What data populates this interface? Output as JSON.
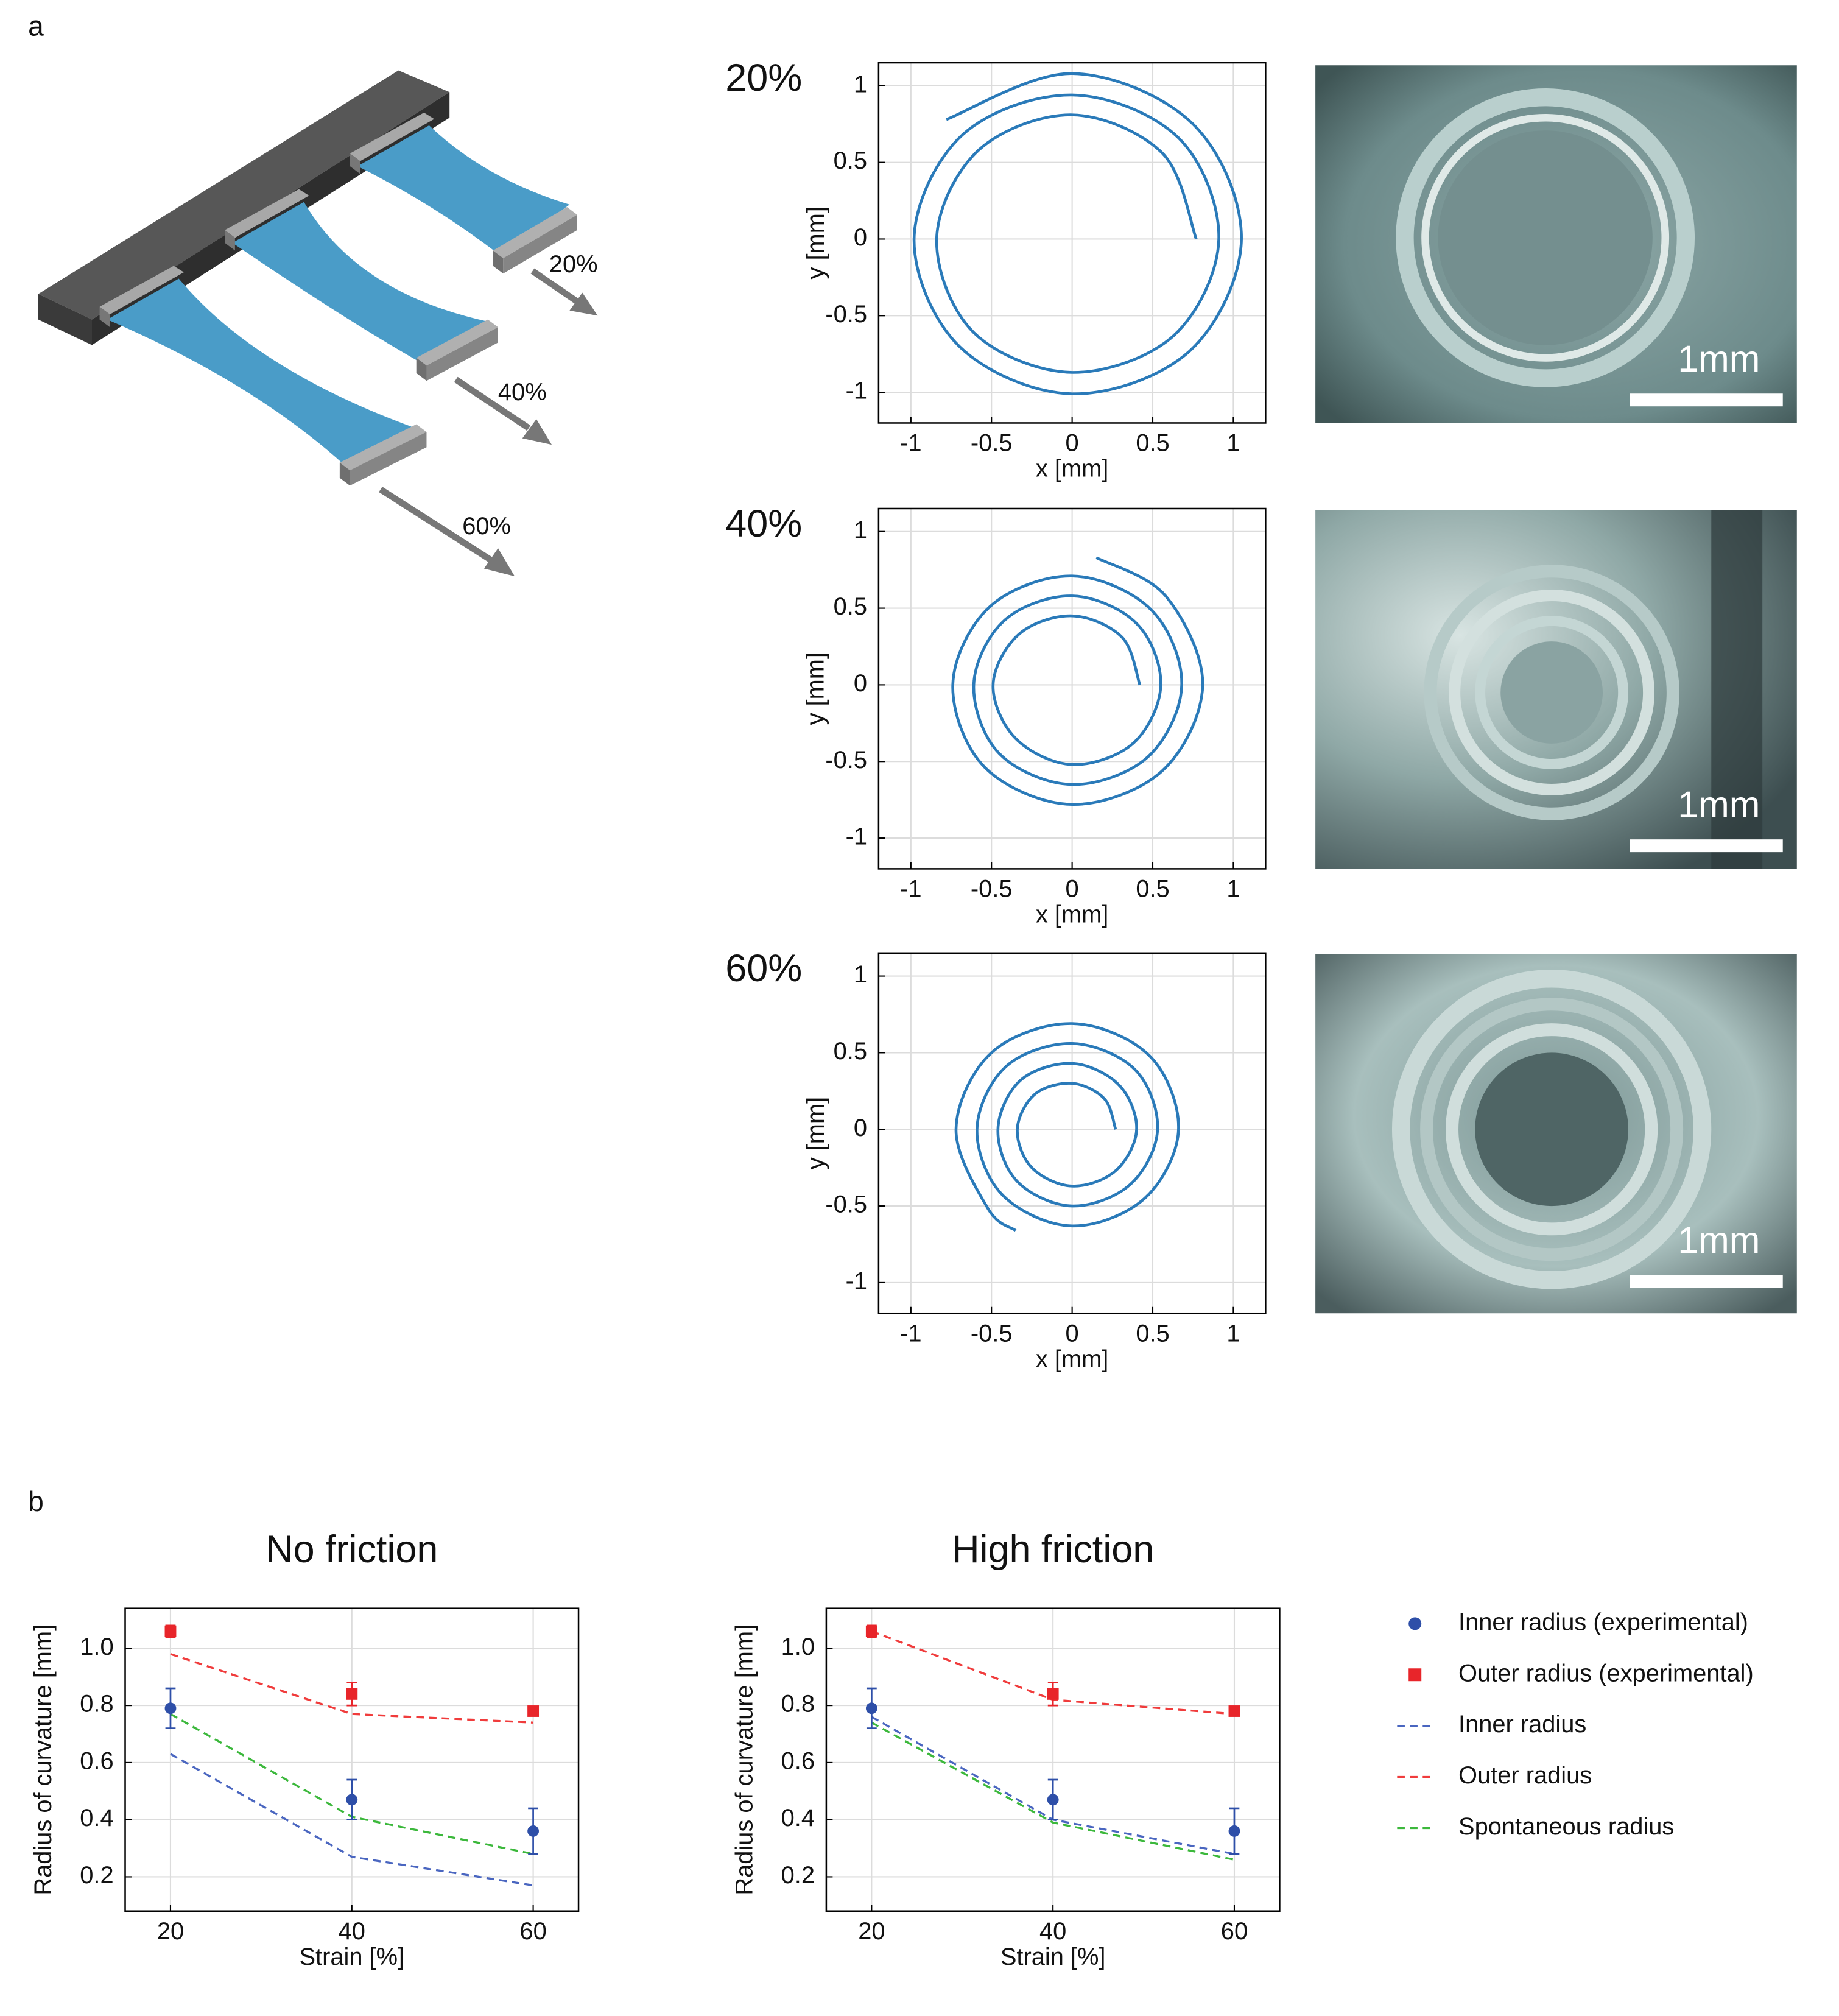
{
  "figure": {
    "panel_labels": [
      "a",
      "b"
    ],
    "stretch_labels": [
      "20%",
      "40%",
      "60%"
    ],
    "scale_bars": [
      "1mm",
      "1mm",
      "1mm"
    ]
  },
  "chart_data": [
    {
      "type": "line",
      "title": "20%",
      "xlabel": "x [mm]",
      "ylabel": "y [mm]",
      "color": "#2a7ab9",
      "grid": true,
      "xlim": [
        -1.2,
        1.2
      ],
      "ylim": [
        -1.2,
        1.15
      ],
      "xticks": [
        -1,
        -0.5,
        0,
        0.5,
        1
      ],
      "yticks": [
        -1,
        -0.5,
        0,
        0.5,
        1
      ],
      "x": [
        0.77,
        0.56,
        0,
        -0.58,
        -0.84,
        -0.61,
        0,
        0.63,
        0.91,
        0.66,
        0,
        -0.68,
        -0.98,
        -0.7,
        0,
        0.73,
        1.05,
        0.75,
        0,
        -0.78
      ],
      "values": [
        0,
        0.56,
        0.81,
        0.58,
        0,
        -0.61,
        -0.87,
        -0.63,
        0,
        0.66,
        0.94,
        0.68,
        0,
        -0.7,
        -1.01,
        -0.73,
        0,
        0.75,
        1.08,
        0.78
      ]
    },
    {
      "type": "line",
      "title": "40%",
      "xlabel": "x [mm]",
      "ylabel": "y [mm]",
      "color": "#2a7ab9",
      "grid": true,
      "xlim": [
        -1.2,
        1.2
      ],
      "ylim": [
        -1.2,
        1.15
      ],
      "xticks": [
        -1,
        -0.5,
        0,
        0.5,
        1
      ],
      "yticks": [
        -1,
        -0.5,
        0,
        0.5,
        1
      ],
      "x": [
        0.42,
        0.31,
        0,
        -0.33,
        -0.49,
        -0.35,
        0,
        0.38,
        0.55,
        0.4,
        0,
        -0.42,
        -0.61,
        -0.45,
        0,
        0.47,
        0.68,
        0.49,
        0,
        -0.51,
        -0.74,
        -0.54,
        0,
        0.56,
        0.81,
        0.58,
        0.15
      ],
      "values": [
        0,
        0.31,
        0.45,
        0.33,
        0,
        -0.35,
        -0.52,
        -0.38,
        0,
        0.4,
        0.58,
        0.42,
        0,
        -0.45,
        -0.65,
        -0.47,
        0,
        0.49,
        0.71,
        0.51,
        0,
        -0.54,
        -0.78,
        -0.56,
        0,
        0.58,
        0.83
      ]
    },
    {
      "type": "line",
      "title": "60%",
      "xlabel": "x [mm]",
      "ylabel": "y [mm]",
      "color": "#2a7ab9",
      "grid": true,
      "xlim": [
        -1.2,
        1.2
      ],
      "ylim": [
        -1.2,
        1.15
      ],
      "xticks": [
        -1,
        -0.5,
        0,
        0.5,
        1
      ],
      "yticks": [
        -1,
        -0.5,
        0,
        0.5,
        1
      ],
      "x": [
        0.27,
        0.2,
        0,
        -0.23,
        -0.34,
        -0.25,
        0,
        0.27,
        0.4,
        0.29,
        0,
        -0.32,
        -0.46,
        -0.34,
        0,
        0.36,
        0.53,
        0.39,
        0,
        -0.41,
        -0.59,
        -0.43,
        0,
        0.45,
        0.66,
        0.48,
        0,
        -0.5,
        -0.72,
        -0.52,
        -0.35
      ],
      "values": [
        0,
        0.2,
        0.3,
        0.23,
        0,
        -0.25,
        -0.37,
        -0.27,
        0,
        0.29,
        0.43,
        0.32,
        0,
        -0.34,
        -0.5,
        -0.36,
        0,
        0.39,
        0.56,
        0.41,
        0,
        -0.43,
        -0.63,
        -0.45,
        0,
        0.48,
        0.69,
        0.5,
        0,
        -0.52,
        -0.66
      ]
    },
    {
      "type": "line",
      "title": "No friction",
      "xlabel": "Strain [%]",
      "ylabel": "Radius of curvature [mm]",
      "grid": true,
      "xlim": [
        15,
        65
      ],
      "ylim": [
        0.08,
        1.14
      ],
      "xticks": [
        20,
        40,
        60
      ],
      "yticks": [
        0.2,
        0.4,
        0.6,
        0.8,
        {
          "value": 1,
          "label": "1.0"
        }
      ],
      "x": [
        20,
        40,
        60
      ],
      "series": [
        {
          "color": "#2e4fa8",
          "marker": "circle",
          "values": [
            0.79,
            0.47,
            0.36
          ],
          "errors": [
            0.07,
            0.07,
            0.08
          ]
        },
        {
          "color": "#e8252a",
          "marker": "square",
          "values": [
            1.06,
            0.84,
            0.78
          ],
          "errors": [
            0.02,
            0.04,
            0.01
          ]
        },
        {
          "color": "#4a66c0",
          "dash": true,
          "values": [
            0.63,
            0.27,
            0.17
          ]
        },
        {
          "color": "#f03c3c",
          "dash": true,
          "values": [
            0.98,
            0.77,
            0.74
          ]
        },
        {
          "color": "#3cb83c",
          "dash": true,
          "values": [
            0.77,
            0.41,
            0.28
          ]
        }
      ]
    },
    {
      "type": "line",
      "title": "High friction",
      "xlabel": "Strain [%]",
      "ylabel": "Radius of curvature [mm]",
      "grid": true,
      "legend": "right",
      "xlim": [
        15,
        65
      ],
      "ylim": [
        0.08,
        1.14
      ],
      "xticks": [
        20,
        40,
        60
      ],
      "yticks": [
        0.2,
        0.4,
        0.6,
        0.8,
        {
          "value": 1,
          "label": "1.0"
        }
      ],
      "x": [
        20,
        40,
        60
      ],
      "series": [
        {
          "name": "Inner radius (experimental)",
          "color": "#2e4fa8",
          "marker": "circle",
          "values": [
            0.79,
            0.47,
            0.36
          ],
          "errors": [
            0.07,
            0.07,
            0.08
          ]
        },
        {
          "name": "Outer radius (experimental)",
          "color": "#e8252a",
          "marker": "square",
          "values": [
            1.06,
            0.84,
            0.78
          ],
          "errors": [
            0.02,
            0.04,
            0.01
          ]
        },
        {
          "name": "Inner radius",
          "color": "#4a66c0",
          "dash": true,
          "values": [
            0.76,
            0.4,
            0.28
          ]
        },
        {
          "name": "Outer radius",
          "color": "#f03c3c",
          "dash": true,
          "values": [
            1.06,
            0.82,
            0.77
          ]
        },
        {
          "name": "Spontaneous radius",
          "color": "#3cb83c",
          "dash": true,
          "values": [
            0.74,
            0.39,
            0.26
          ]
        }
      ]
    }
  ]
}
